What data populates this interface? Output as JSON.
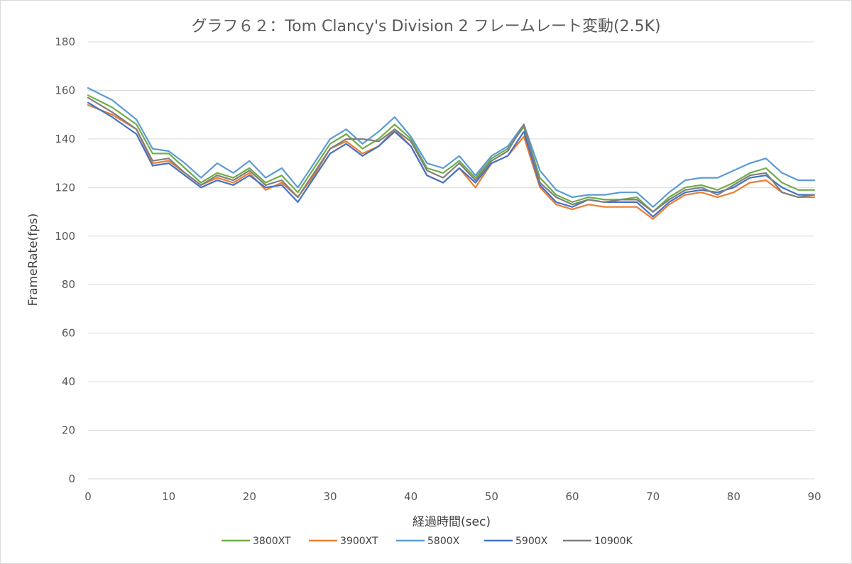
{
  "chart_data": {
    "type": "line",
    "title": "グラフ６２：Tom Clancy's Division 2 フレームレート変動(2.5K)",
    "xlabel": "経過時間(sec)",
    "ylabel": "FrameRate(fps)",
    "xlim": [
      0,
      90
    ],
    "ylim": [
      0,
      180
    ],
    "x_ticks": [
      "0",
      "10",
      "20",
      "30",
      "40",
      "50",
      "60",
      "70",
      "80",
      "90"
    ],
    "y_ticks": [
      "0",
      "20",
      "40",
      "60",
      "80",
      "100",
      "120",
      "140",
      "160",
      "180"
    ],
    "grid": true,
    "legend_position": "bottom",
    "x": [
      0,
      3,
      6,
      8,
      10,
      12,
      14,
      16,
      18,
      20,
      22,
      24,
      26,
      28,
      30,
      32,
      34,
      36,
      38,
      40,
      42,
      44,
      46,
      48,
      50,
      52,
      54,
      56,
      58,
      60,
      62,
      64,
      66,
      68,
      70,
      72,
      74,
      76,
      78,
      80,
      82,
      84,
      86,
      88,
      90
    ],
    "series": [
      {
        "name": "3800XT",
        "color": "#70ad47",
        "values": [
          158,
          153,
          146,
          134,
          134,
          128,
          122,
          126,
          124,
          128,
          122,
          125,
          118,
          128,
          138,
          142,
          136,
          140,
          146,
          140,
          128,
          126,
          131,
          124,
          132,
          136,
          145,
          124,
          117,
          114,
          116,
          115,
          115,
          116,
          110,
          116,
          120,
          121,
          119,
          122,
          126,
          128,
          122,
          119,
          119
        ]
      },
      {
        "name": "3900XT",
        "color": "#ed7d31",
        "values": [
          154,
          150,
          144,
          130,
          131,
          126,
          121,
          124,
          122,
          126,
          119,
          122,
          116,
          125,
          136,
          139,
          134,
          137,
          144,
          137,
          125,
          122,
          128,
          120,
          130,
          133,
          141,
          120,
          113,
          111,
          113,
          112,
          112,
          112,
          107,
          113,
          117,
          118,
          116,
          118,
          122,
          123,
          118,
          116,
          116
        ]
      },
      {
        "name": "5800X",
        "color": "#5b9bd5",
        "values": [
          161,
          156,
          148,
          136,
          135,
          130,
          124,
          130,
          126,
          131,
          124,
          128,
          120,
          130,
          140,
          144,
          138,
          143,
          149,
          141,
          130,
          128,
          133,
          125,
          133,
          137,
          146,
          127,
          119,
          116,
          117,
          117,
          118,
          118,
          112,
          118,
          123,
          124,
          124,
          127,
          130,
          132,
          126,
          123,
          123
        ]
      },
      {
        "name": "5900X",
        "color": "#4472c4",
        "values": [
          155,
          149,
          142,
          129,
          130,
          125,
          120,
          123,
          121,
          125,
          120,
          121,
          114,
          124,
          134,
          138,
          133,
          137,
          143,
          137,
          125,
          122,
          128,
          122,
          130,
          133,
          143,
          121,
          114,
          112,
          115,
          114,
          114,
          114,
          108,
          114,
          118,
          119,
          118,
          120,
          124,
          125,
          120,
          117,
          117
        ]
      },
      {
        "name": "10900K",
        "color": "#7f7f7f",
        "values": [
          157,
          151,
          144,
          131,
          132,
          126,
          121,
          125,
          123,
          127,
          121,
          123,
          116,
          126,
          136,
          140,
          140,
          139,
          144,
          139,
          127,
          124,
          130,
          123,
          131,
          135,
          146,
          122,
          116,
          113,
          115,
          114,
          115,
          115,
          110,
          115,
          119,
          120,
          117,
          121,
          125,
          126,
          118,
          116,
          117
        ]
      }
    ]
  }
}
